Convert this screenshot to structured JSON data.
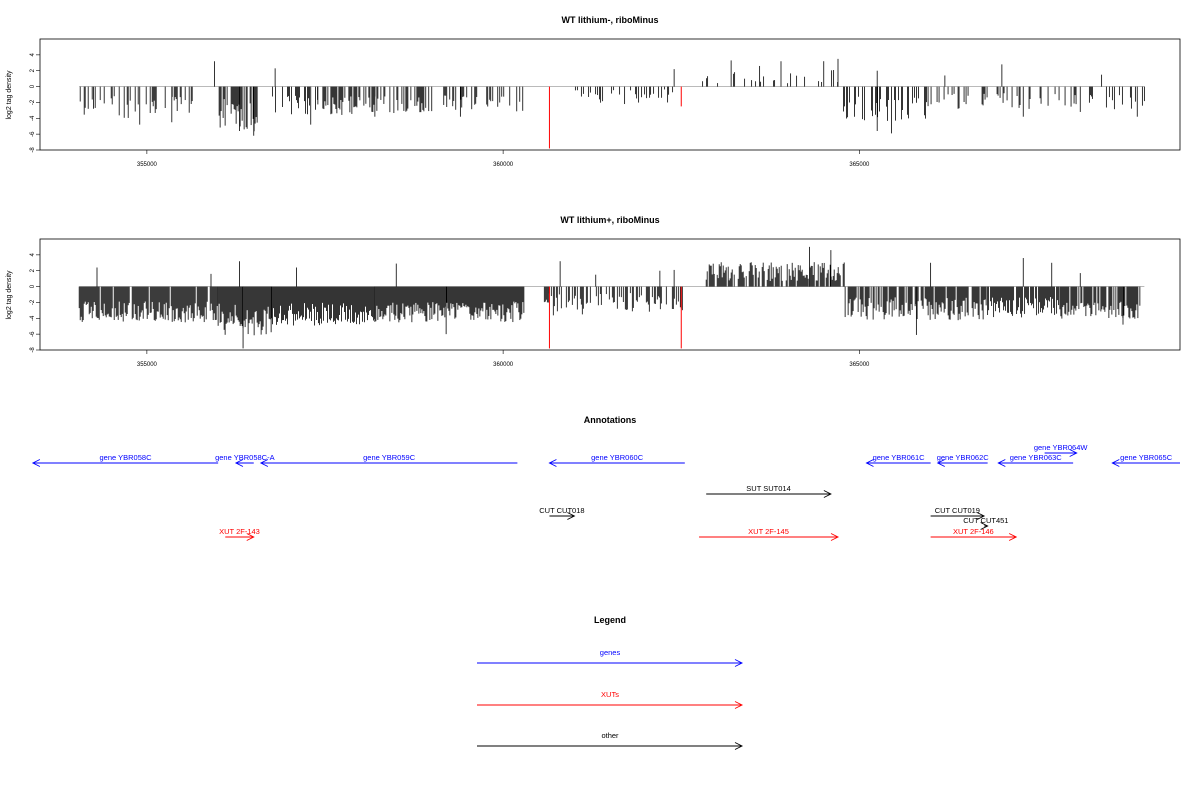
{
  "colors": {
    "gene": "#0000ff",
    "xut": "#ff0000",
    "other": "#000000",
    "marker": "#ff0000"
  },
  "chart_data": [
    {
      "type": "bar",
      "title": "WT lithium-, riboMinus",
      "ylabel": "log2 tag density",
      "xlim": [
        353500,
        369500
      ],
      "ylim": [
        -8,
        6
      ],
      "x_ticks": [
        355000,
        360000,
        365000
      ],
      "x_tick_labels": [
        "355000",
        "360000",
        "365000"
      ],
      "y_ticks": [
        -8,
        -6,
        -4,
        -2,
        0,
        2,
        4
      ],
      "y_tick_labels": [
        "-8",
        "-6",
        "-4",
        "-2",
        "0",
        "2",
        "4"
      ],
      "red_markers": [
        {
          "x": 360650,
          "y": -7.8
        },
        {
          "x": 362500,
          "y": -2.5
        }
      ],
      "segments": [
        {
          "start": 354050,
          "end": 355900,
          "mean": -2.6,
          "spread": 1.2,
          "density": 0.28,
          "spikes": [
            [
              354250,
              -2.8
            ],
            [
              354900,
              -4.8
            ],
            [
              355350,
              -4.5
            ],
            [
              355950,
              3.2
            ]
          ]
        },
        {
          "start": 356000,
          "end": 356550,
          "mean": -3.5,
          "spread": 1.8,
          "density": 0.8,
          "spikes": [
            [
              356300,
              -5.6
            ],
            [
              356500,
              -6.2
            ],
            [
              356800,
              2.3
            ]
          ]
        },
        {
          "start": 356750,
          "end": 357400,
          "mean": -2.3,
          "spread": 1.0,
          "density": 0.3,
          "spikes": [
            [
              357300,
              -4.8
            ]
          ]
        },
        {
          "start": 357400,
          "end": 358900,
          "mean": -2.4,
          "spread": 1.0,
          "density": 0.5,
          "spikes": [
            [
              358200,
              -3.8
            ]
          ]
        },
        {
          "start": 358900,
          "end": 360300,
          "mean": -2.2,
          "spread": 0.9,
          "density": 0.35,
          "spikes": [
            [
              359400,
              -3.8
            ]
          ]
        },
        {
          "start": 361000,
          "end": 361300,
          "mean": -0.8,
          "spread": 0.4,
          "density": 0.25,
          "spikes": []
        },
        {
          "start": 361200,
          "end": 362400,
          "mean": -1.3,
          "spread": 0.8,
          "density": 0.25,
          "spikes": [
            [
              362400,
              2.2
            ]
          ]
        },
        {
          "start": 362800,
          "end": 364750,
          "mean": 1.3,
          "spread": 0.9,
          "density": 0.16,
          "spikes": [
            [
              363200,
              3.3
            ],
            [
              363600,
              2.6
            ],
            [
              363900,
              3.2
            ],
            [
              364500,
              3.2
            ],
            [
              364700,
              3.5
            ]
          ]
        },
        {
          "start": 364750,
          "end": 365950,
          "mean": -2.8,
          "spread": 1.3,
          "density": 0.4,
          "spikes": [
            [
              365250,
              -5.6
            ],
            [
              365450,
              -5.9
            ],
            [
              365250,
              2.0
            ]
          ]
        },
        {
          "start": 365950,
          "end": 368200,
          "mean": -1.8,
          "spread": 0.9,
          "density": 0.22,
          "spikes": [
            [
              366200,
              1.4
            ],
            [
              367000,
              2.8
            ],
            [
              367300,
              -3.8
            ],
            [
              368100,
              -3.2
            ]
          ]
        },
        {
          "start": 368200,
          "end": 369000,
          "mean": -1.9,
          "spread": 0.8,
          "density": 0.25,
          "spikes": [
            [
              368400,
              1.5
            ],
            [
              368900,
              -3.8
            ]
          ]
        }
      ]
    },
    {
      "type": "bar",
      "title": "WT lithium+, riboMinus",
      "ylabel": "log2 tag density",
      "xlim": [
        353500,
        369500
      ],
      "ylim": [
        -8,
        6
      ],
      "x_ticks": [
        355000,
        360000,
        365000
      ],
      "x_tick_labels": [
        "355000",
        "360000",
        "365000"
      ],
      "y_ticks": [
        -8,
        -6,
        -4,
        -2,
        0,
        2,
        4
      ],
      "y_tick_labels": [
        "-8",
        "-6",
        "-4",
        "-2",
        "0",
        "2",
        "4"
      ],
      "red_markers": [
        {
          "x": 360650,
          "y": -7.8
        },
        {
          "x": 362500,
          "y": -7.8
        }
      ],
      "segments": [
        {
          "start": 354050,
          "end": 356000,
          "mean": -3.2,
          "spread": 1.1,
          "density": 0.9,
          "spikes": [
            [
              354300,
              2.4
            ],
            [
              355900,
              1.6
            ]
          ]
        },
        {
          "start": 356000,
          "end": 356750,
          "mean": -4.2,
          "spread": 1.7,
          "density": 1.0,
          "spikes": [
            [
              356350,
              -7.8
            ],
            [
              356300,
              3.2
            ]
          ]
        },
        {
          "start": 356750,
          "end": 358200,
          "mean": -3.5,
          "spread": 1.2,
          "density": 1.0,
          "spikes": [
            [
              357100,
              2.4
            ]
          ]
        },
        {
          "start": 358200,
          "end": 360300,
          "mean": -3.2,
          "spread": 1.1,
          "density": 1.0,
          "spikes": [
            [
              358500,
              2.9
            ],
            [
              359200,
              -6.0
            ]
          ]
        },
        {
          "start": 360550,
          "end": 362550,
          "mean": -2.2,
          "spread": 1.2,
          "density": 0.5,
          "spikes": [
            [
              360800,
              3.2
            ],
            [
              361300,
              1.5
            ],
            [
              362200,
              2.0
            ],
            [
              362400,
              2.1
            ]
          ]
        },
        {
          "start": 362850,
          "end": 364800,
          "mean": 1.9,
          "spread": 1.0,
          "density": 0.7,
          "spikes": [
            [
              364300,
              5.0
            ],
            [
              364600,
              4.6
            ]
          ]
        },
        {
          "start": 364800,
          "end": 366800,
          "mean": -2.8,
          "spread": 1.2,
          "density": 0.8,
          "spikes": [
            [
              365800,
              -6.1
            ],
            [
              366000,
              3.0
            ]
          ]
        },
        {
          "start": 366800,
          "end": 367800,
          "mean": -2.6,
          "spread": 1.1,
          "density": 0.8,
          "spikes": [
            [
              367300,
              3.6
            ],
            [
              367700,
              3.0
            ]
          ]
        },
        {
          "start": 367800,
          "end": 369000,
          "mean": -3.0,
          "spread": 0.9,
          "density": 0.8,
          "spikes": [
            [
              368100,
              1.7
            ],
            [
              368700,
              -4.8
            ]
          ]
        }
      ]
    }
  ],
  "annotations": {
    "title": "Annotations",
    "features": [
      {
        "label": "gene YBR058C",
        "kind": "gene",
        "x1": 356000,
        "x2": 353400,
        "row": 0
      },
      {
        "label": "gene YBR058C-A",
        "kind": "gene",
        "x1": 356500,
        "x2": 356250,
        "row": 0
      },
      {
        "label": "gene YBR059C",
        "kind": "gene",
        "x1": 360200,
        "x2": 356600,
        "row": 0
      },
      {
        "label": "gene YBR060C",
        "kind": "gene",
        "x1": 362550,
        "x2": 360650,
        "row": 0
      },
      {
        "label": "gene YBR061C",
        "kind": "gene",
        "x1": 366000,
        "x2": 365100,
        "row": 0
      },
      {
        "label": "gene YBR062C",
        "kind": "gene",
        "x1": 366800,
        "x2": 366100,
        "row": 0
      },
      {
        "label": "gene YBR063C",
        "kind": "gene",
        "x1": 368000,
        "x2": 366950,
        "row": 0
      },
      {
        "label": "gene YBR064W",
        "kind": "gene",
        "x1": 367600,
        "x2": 368050,
        "row": -1
      },
      {
        "label": "gene YBR065C",
        "kind": "gene",
        "x1": 369500,
        "x2": 368550,
        "row": 0
      },
      {
        "label": "SUT SUT014",
        "kind": "other",
        "x1": 362850,
        "x2": 364600,
        "row": 1
      },
      {
        "label": "CUT CUT018",
        "kind": "other",
        "x1": 360650,
        "x2": 361000,
        "row": 2
      },
      {
        "label": "CUT CUT019",
        "kind": "other",
        "x1": 366000,
        "x2": 366750,
        "row": 2
      },
      {
        "label": "CUT CUT451",
        "kind": "other",
        "x1": 366750,
        "x2": 366800,
        "row": 2.5
      },
      {
        "label": "XUT 2F-143",
        "kind": "xut",
        "x1": 356100,
        "x2": 356500,
        "row": 3
      },
      {
        "label": "XUT 2F-145",
        "kind": "xut",
        "x1": 362750,
        "x2": 364700,
        "row": 3
      },
      {
        "label": "XUT 2F-146",
        "kind": "xut",
        "x1": 366000,
        "x2": 367200,
        "row": 3
      }
    ]
  },
  "legend": {
    "title": "Legend",
    "items": [
      {
        "label": "genes",
        "kind": "gene"
      },
      {
        "label": "XUTs",
        "kind": "xut"
      },
      {
        "label": "other",
        "kind": "other"
      }
    ]
  }
}
